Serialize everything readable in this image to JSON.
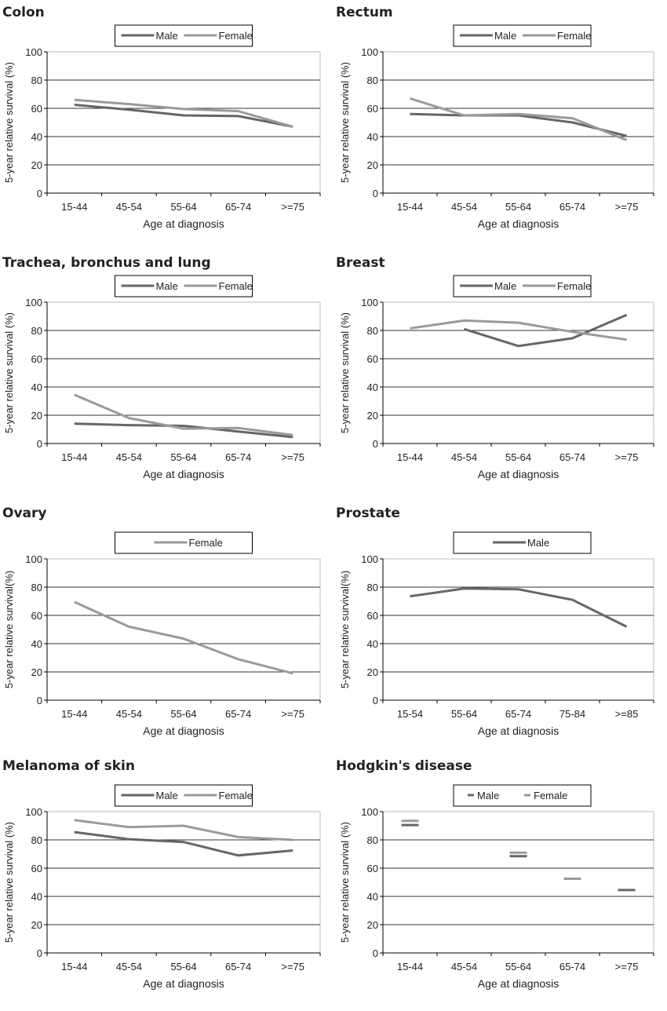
{
  "colors": {
    "male": "#666666",
    "female": "#9a9a9a",
    "grid": "#333333",
    "frame": "#bbbbbb"
  },
  "chart_data": [
    {
      "type": "line",
      "title": "Colon",
      "xlabel": "Age at diagnosis",
      "ylabel": "5-year relative survival (%)",
      "ylim": [
        0,
        100
      ],
      "yticks": [
        0,
        20,
        40,
        60,
        80,
        100
      ],
      "grid": true,
      "legend": "top-center",
      "categories": [
        "15-44",
        "45-54",
        "55-64",
        "65-74",
        ">=75"
      ],
      "series": [
        {
          "name": "Male",
          "values": [
            62.5,
            59,
            55,
            54.5,
            47
          ]
        },
        {
          "name": "Female",
          "values": [
            66,
            63,
            59.5,
            58,
            47
          ]
        }
      ]
    },
    {
      "type": "line",
      "title": "Rectum",
      "xlabel": "Age at diagnosis",
      "ylabel": "5-year relative survival (%)",
      "ylim": [
        0,
        100
      ],
      "yticks": [
        0,
        20,
        40,
        60,
        80,
        100
      ],
      "grid": true,
      "legend": "top-center",
      "categories": [
        "15-44",
        "45-54",
        "55-64",
        "65-74",
        ">=75"
      ],
      "series": [
        {
          "name": "Male",
          "values": [
            56,
            55,
            55,
            50,
            40.5
          ]
        },
        {
          "name": "Female",
          "values": [
            67,
            55,
            56,
            53,
            37.5
          ]
        }
      ]
    },
    {
      "type": "line",
      "title": "Trachea, bronchus and lung",
      "xlabel": "Age at diagnosis",
      "ylabel": "5-year relative survival (%)",
      "ylim": [
        0,
        100
      ],
      "yticks": [
        0,
        20,
        40,
        60,
        80,
        100
      ],
      "grid": true,
      "legend": "top-center",
      "categories": [
        "15-44",
        "45-54",
        "55-64",
        "65-74",
        ">=75"
      ],
      "series": [
        {
          "name": "Male",
          "values": [
            14,
            13,
            12.5,
            8.5,
            4.5
          ]
        },
        {
          "name": "Female",
          "values": [
            34.5,
            18,
            10.5,
            11,
            6
          ]
        }
      ]
    },
    {
      "type": "line",
      "title": "Breast",
      "xlabel": "Age at diagnosis",
      "ylabel": "5-year relative survival (%)",
      "ylim": [
        0,
        100
      ],
      "yticks": [
        0,
        20,
        40,
        60,
        80,
        100
      ],
      "grid": true,
      "legend": "top-center",
      "categories": [
        "15-44",
        "45-54",
        "55-64",
        "65-74",
        ">=75"
      ],
      "series": [
        {
          "name": "Male",
          "values": [
            null,
            81,
            69,
            74.5,
            91
          ]
        },
        {
          "name": "Female",
          "values": [
            81.5,
            87,
            85.5,
            79,
            73.5
          ]
        }
      ]
    },
    {
      "type": "line",
      "title": "Ovary",
      "xlabel": "Age at diagnosis",
      "ylabel": "5-year relative survival(%)",
      "ylim": [
        0,
        100
      ],
      "yticks": [
        0,
        20,
        40,
        60,
        80,
        100
      ],
      "grid": true,
      "legend": "top-center",
      "categories": [
        "15-44",
        "45-54",
        "55-64",
        "65-74",
        ">=75"
      ],
      "series": [
        {
          "name": "Female",
          "values": [
            69.5,
            52,
            43.5,
            29,
            19
          ]
        }
      ]
    },
    {
      "type": "line",
      "title": "Prostate",
      "xlabel": "Age at diagnosis",
      "ylabel": "5-year relative survival(%)",
      "ylim": [
        0,
        100
      ],
      "yticks": [
        0,
        20,
        40,
        60,
        80,
        100
      ],
      "grid": true,
      "legend": "top-center",
      "categories": [
        "15-54",
        "55-64",
        "65-74",
        "75-84",
        ">=85"
      ],
      "series": [
        {
          "name": "Male",
          "values": [
            73.5,
            79,
            78.5,
            71,
            52
          ]
        }
      ]
    },
    {
      "type": "line",
      "title": "Melanoma of skin",
      "xlabel": "Age at diagnosis",
      "ylabel": "5-year relative survival (%)",
      "ylim": [
        0,
        100
      ],
      "yticks": [
        0,
        20,
        40,
        60,
        80,
        100
      ],
      "grid": true,
      "legend": "top-center",
      "categories": [
        "15-44",
        "45-54",
        "55-64",
        "65-74",
        ">=75"
      ],
      "series": [
        {
          "name": "Male",
          "values": [
            85.5,
            80.5,
            78.5,
            69,
            72.5
          ]
        },
        {
          "name": "Female",
          "values": [
            94,
            89,
            90,
            82,
            80
          ]
        }
      ]
    },
    {
      "type": "scatter",
      "marker": "dash",
      "title": "Hodgkin's disease",
      "xlabel": "Age at diagnosis",
      "ylabel": "5-year relative survival (%)",
      "ylim": [
        0,
        100
      ],
      "yticks": [
        0,
        20,
        40,
        60,
        80,
        100
      ],
      "grid": true,
      "legend": "top-center",
      "categories": [
        "15-44",
        "45-54",
        "55-64",
        "65-74",
        ">=75"
      ],
      "series": [
        {
          "name": "Male",
          "values": [
            90.5,
            null,
            68.5,
            null,
            44.5
          ]
        },
        {
          "name": "Female",
          "values": [
            93.5,
            null,
            71,
            52.5,
            null
          ]
        }
      ]
    }
  ]
}
